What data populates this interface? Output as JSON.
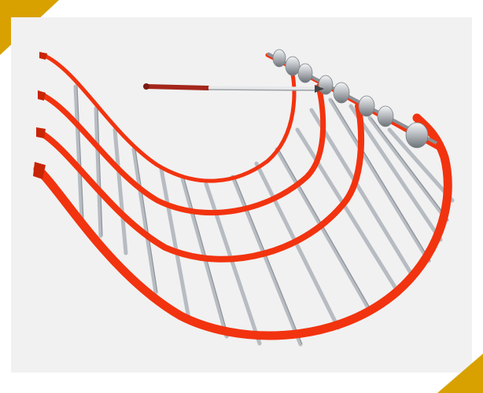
{
  "image": {
    "subject": "cable-rail",
    "colors": {
      "background": "#f1f1f1",
      "corner_accent": "#d8a100",
      "strap": "#f2330f",
      "strap_dark": "#c82406",
      "bar": "#c9ced4",
      "bar_dark": "#6e747a",
      "roller": "#b9bdc2",
      "rod_handle": "#a3261b"
    }
  }
}
